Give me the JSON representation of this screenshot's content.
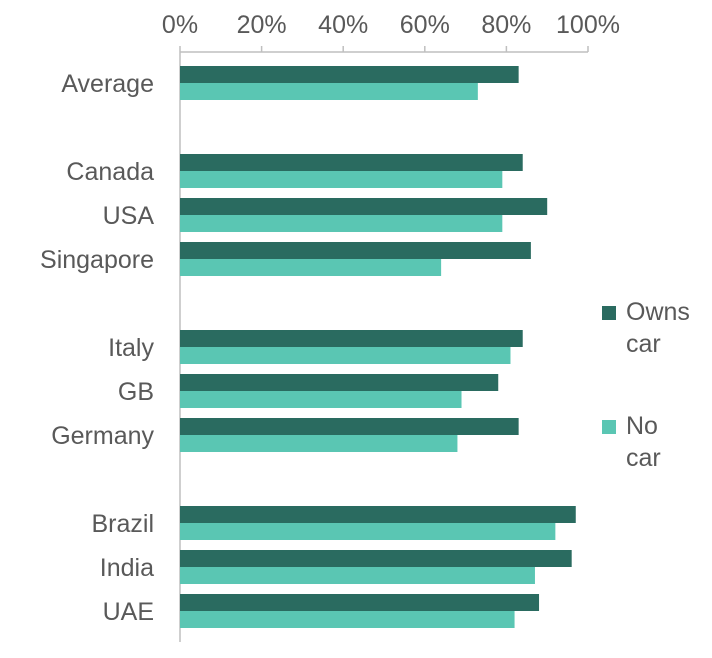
{
  "chart_data": {
    "type": "bar",
    "orientation": "horizontal",
    "x_axis_position": "top",
    "xlim": [
      0,
      100
    ],
    "ticks": [
      "0%",
      "20%",
      "40%",
      "60%",
      "80%",
      "100%"
    ],
    "grid": false,
    "legend_position": "right",
    "categories": [
      "Average",
      "Canada",
      "USA",
      "Singapore",
      "Italy",
      "GB",
      "Germany",
      "Brazil",
      "India",
      "UAE"
    ],
    "groups": [
      [
        0
      ],
      [
        1,
        2,
        3
      ],
      [
        4,
        5,
        6
      ],
      [
        7,
        8,
        9
      ]
    ],
    "series": [
      {
        "name": "Owns car",
        "legend_lines": [
          "Owns",
          "car"
        ],
        "color": "#2a6b60",
        "values": [
          83,
          84,
          90,
          86,
          84,
          78,
          83,
          97,
          96,
          88
        ]
      },
      {
        "name": "No car",
        "legend_lines": [
          "No",
          "car"
        ],
        "color": "#5ac6b3",
        "values": [
          73,
          79,
          79,
          64,
          81,
          69,
          68,
          92,
          87,
          82
        ]
      }
    ]
  }
}
